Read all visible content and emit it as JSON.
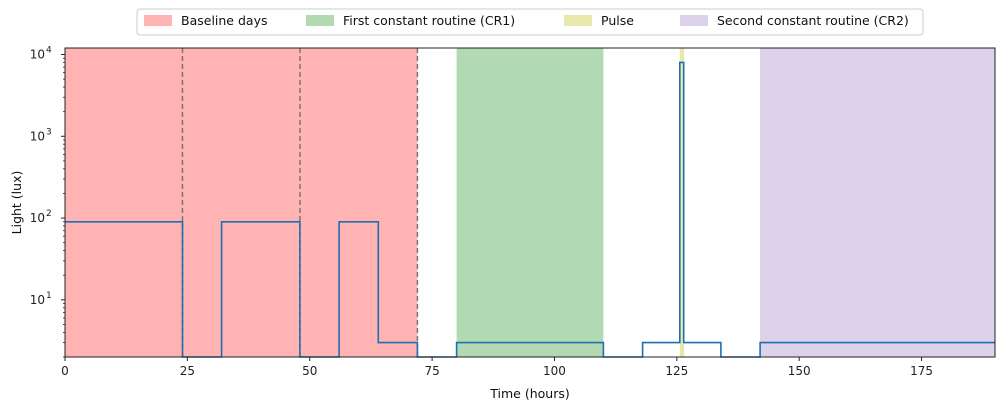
{
  "chart_data": {
    "type": "line",
    "title": "",
    "xlabel": "Time (hours)",
    "ylabel": "Light (lux)",
    "xlim": [
      0,
      190
    ],
    "ylim": [
      2,
      12000
    ],
    "yscale": "log",
    "grid": false,
    "legend_position": "top-center",
    "x_ticks": [
      0,
      25,
      50,
      75,
      100,
      125,
      150,
      175
    ],
    "x_tick_labels": [
      "0",
      "25",
      "50",
      "75",
      "100",
      "125",
      "150",
      "175"
    ],
    "y_ticks": [
      10,
      100,
      1000,
      10000
    ],
    "y_tick_base": "10",
    "y_tick_exponents": [
      "1",
      "2",
      "3",
      "4"
    ],
    "regions": [
      {
        "name": "Baseline days",
        "x_start": 0,
        "x_end": 72,
        "color": "#ff9a9a",
        "opacity": 0.75
      },
      {
        "name": "First constant routine (CR1)",
        "x_start": 80,
        "x_end": 110,
        "color": "#8ec98e",
        "opacity": 0.68
      },
      {
        "name": "Pulse",
        "x_start": 125.6,
        "x_end": 126.5,
        "color": "#dede8a",
        "opacity": 0.7
      },
      {
        "name": "Second constant routine (CR2)",
        "x_start": 142,
        "x_end": 190,
        "color": "#c8b2dc",
        "opacity": 0.6
      }
    ],
    "vlines": [
      24,
      48,
      72
    ],
    "series": [
      {
        "color": "#1f6fb4",
        "points": [
          [
            0,
            90
          ],
          [
            24,
            90
          ],
          [
            24,
            2
          ],
          [
            32,
            2
          ],
          [
            32,
            90
          ],
          [
            48,
            90
          ],
          [
            48,
            2
          ],
          [
            56,
            2
          ],
          [
            56,
            90
          ],
          [
            64,
            90
          ],
          [
            64,
            3
          ],
          [
            72,
            3
          ],
          [
            72,
            2
          ],
          [
            80,
            2
          ],
          [
            80,
            3
          ],
          [
            110,
            3
          ],
          [
            110,
            2
          ],
          [
            118,
            2
          ],
          [
            118,
            3
          ],
          [
            125.6,
            3
          ],
          [
            125.6,
            8000
          ],
          [
            126.4,
            8000
          ],
          [
            126.4,
            3
          ],
          [
            134,
            3
          ],
          [
            134,
            2
          ],
          [
            142,
            2
          ],
          [
            142,
            3
          ],
          [
            190,
            3
          ]
        ]
      }
    ]
  }
}
